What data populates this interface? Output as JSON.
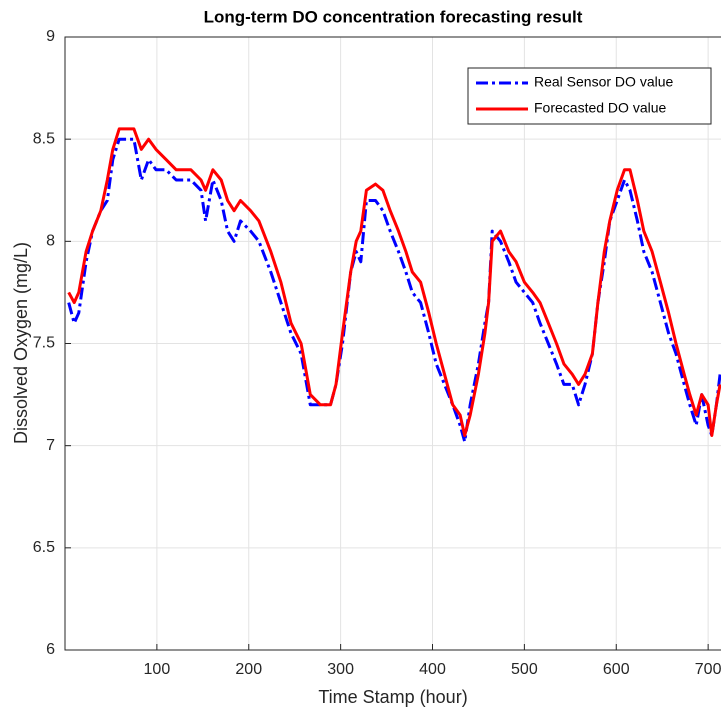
{
  "chart_data": {
    "type": "line",
    "title": "Long-term DO concentration forecasting result",
    "xlabel": "Time Stamp (hour)",
    "ylabel": "Dissolved Oxygen (mg/L)",
    "x": [
      4,
      10,
      15,
      23,
      30,
      39,
      46,
      52,
      59,
      66,
      75,
      83,
      91,
      99,
      110,
      121,
      137,
      148,
      153,
      161,
      170,
      177,
      184,
      191,
      202,
      211,
      224,
      235,
      246,
      257,
      267,
      278,
      289,
      295,
      302,
      311,
      317,
      322,
      328,
      338,
      346,
      354,
      363,
      371,
      378,
      387,
      396,
      404,
      413,
      422,
      430,
      435,
      441,
      450,
      457,
      461,
      465,
      474,
      483,
      491,
      500,
      509,
      517,
      526,
      535,
      543,
      552,
      559,
      566,
      574,
      580,
      587,
      593,
      601,
      609,
      615,
      623,
      630,
      639,
      648,
      657,
      665,
      674,
      680,
      687,
      693,
      700,
      704,
      709,
      713
    ],
    "series": [
      {
        "name": "Real Sensor DO value",
        "color": "#0000ff",
        "linestyle": "dashdot",
        "values": [
          7.7,
          7.6,
          7.65,
          7.9,
          8.05,
          8.15,
          8.2,
          8.4,
          8.5,
          8.5,
          8.5,
          8.3,
          8.4,
          8.35,
          8.35,
          8.3,
          8.3,
          8.25,
          8.1,
          8.3,
          8.2,
          8.05,
          8.0,
          8.1,
          8.05,
          8.0,
          7.85,
          7.7,
          7.55,
          7.45,
          7.2,
          7.2,
          7.2,
          7.3,
          7.5,
          7.85,
          7.95,
          7.9,
          8.2,
          8.2,
          8.15,
          8.05,
          7.95,
          7.85,
          7.75,
          7.7,
          7.55,
          7.4,
          7.3,
          7.2,
          7.1,
          7.02,
          7.2,
          7.4,
          7.6,
          7.7,
          8.05,
          8.0,
          7.9,
          7.8,
          7.75,
          7.7,
          7.6,
          7.5,
          7.4,
          7.3,
          7.3,
          7.2,
          7.3,
          7.45,
          7.7,
          7.9,
          8.1,
          8.2,
          8.3,
          8.25,
          8.1,
          7.95,
          7.85,
          7.7,
          7.55,
          7.45,
          7.3,
          7.2,
          7.1,
          7.25,
          7.1,
          7.05,
          7.2,
          7.35
        ]
      },
      {
        "name": "Forecasted DO value",
        "color": "#ff0000",
        "linestyle": "solid",
        "values": [
          7.75,
          7.7,
          7.75,
          7.95,
          8.05,
          8.15,
          8.3,
          8.45,
          8.55,
          8.55,
          8.55,
          8.45,
          8.5,
          8.45,
          8.4,
          8.35,
          8.35,
          8.3,
          8.25,
          8.35,
          8.3,
          8.2,
          8.15,
          8.2,
          8.15,
          8.1,
          7.95,
          7.8,
          7.6,
          7.5,
          7.25,
          7.2,
          7.2,
          7.3,
          7.55,
          7.85,
          8.0,
          8.05,
          8.25,
          8.28,
          8.25,
          8.15,
          8.05,
          7.95,
          7.85,
          7.8,
          7.65,
          7.5,
          7.35,
          7.2,
          7.15,
          7.05,
          7.15,
          7.35,
          7.55,
          7.7,
          8.0,
          8.05,
          7.95,
          7.9,
          7.8,
          7.75,
          7.7,
          7.6,
          7.5,
          7.4,
          7.35,
          7.3,
          7.35,
          7.45,
          7.7,
          7.95,
          8.1,
          8.25,
          8.35,
          8.35,
          8.2,
          8.05,
          7.95,
          7.8,
          7.65,
          7.5,
          7.35,
          7.25,
          7.15,
          7.25,
          7.2,
          7.05,
          7.2,
          7.3
        ]
      }
    ],
    "xlim": [
      0,
      714
    ],
    "xticks": [
      100,
      200,
      300,
      400,
      500,
      600,
      700
    ],
    "ylim": [
      6,
      9
    ],
    "yticks": [
      6,
      6.5,
      7,
      7.5,
      8,
      8.5,
      9
    ],
    "grid": true,
    "legend": "northeast"
  }
}
